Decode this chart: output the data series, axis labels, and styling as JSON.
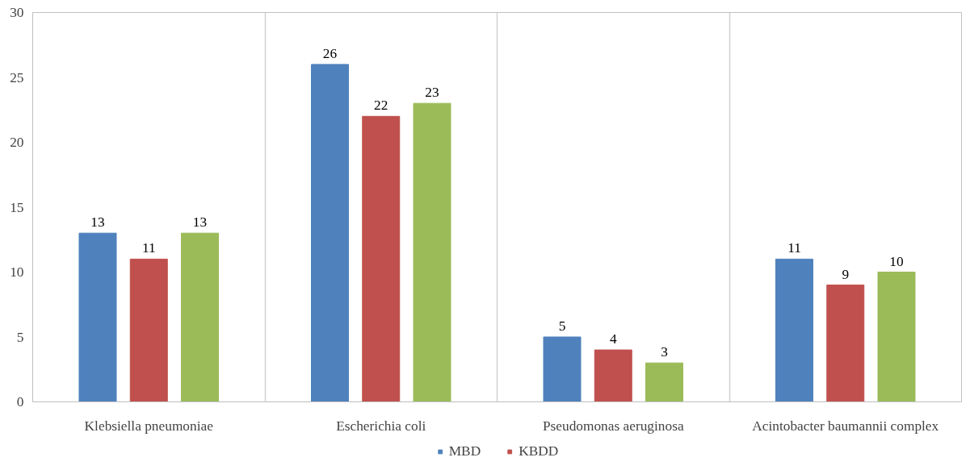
{
  "chart_data": {
    "type": "bar",
    "categories": [
      "Klebsiella pneumoniae",
      "Escherichia coli",
      "Pseudomonas aeruginosa",
      "Acintobacter baumannii complex"
    ],
    "series": [
      {
        "name": "MBD",
        "color": "#4f81bd",
        "values": [
          13,
          26,
          5,
          11
        ]
      },
      {
        "name": "KBDD",
        "color": "#c0504d",
        "values": [
          11,
          22,
          4,
          9
        ]
      },
      {
        "color": "#9bbb59",
        "values": [
          13,
          23,
          3,
          10
        ]
      }
    ],
    "ylim": [
      0,
      30
    ],
    "yticks": [
      0,
      5,
      10,
      15,
      20,
      25,
      30
    ],
    "grid": "x",
    "legend": "bottom",
    "data_labels": true
  }
}
